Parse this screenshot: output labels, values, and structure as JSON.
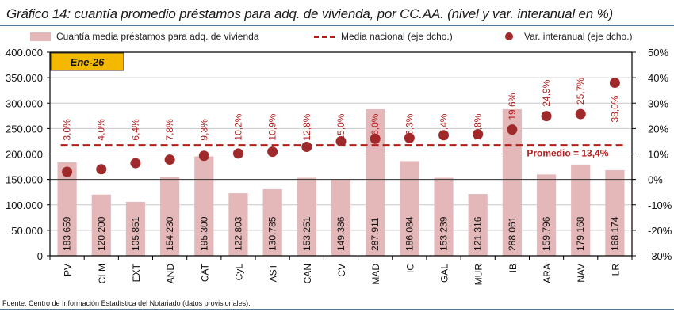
{
  "title": "Gráfico 14: cuantía promedio préstamos para adq. de vivienda, por CC.AA. (nivel y var. interanual en %)",
  "source": "Fuente: Centro de Información Estadística del Notariado (datos provisionales).",
  "colors": {
    "bar": "#e4b8b9",
    "dot": "#9e2a2b",
    "mean_line": "#b01e1e",
    "label": "#b01e1e",
    "badge_bg": "#f5b800",
    "rule": "#4f7ba3"
  },
  "chart_data": {
    "type": "bar",
    "title": "Gráfico 14: cuantía promedio préstamos para adq. de vivienda, por CC.AA. (nivel y var. interanual en %)",
    "badge": "Ene-26",
    "categories": [
      "PV",
      "CLM",
      "EXT",
      "AND",
      "CAT",
      "CyL",
      "AST",
      "CAN",
      "CV",
      "MAD",
      "IC",
      "GAL",
      "MUR",
      "IB",
      "ARA",
      "NAV",
      "LR"
    ],
    "series": [
      {
        "name": "Cuantía media préstamos para adq. de vivienda",
        "type": "bar",
        "axis": "left",
        "values": [
          183659,
          120200,
          105851,
          154230,
          195300,
          122803,
          130785,
          153251,
          149386,
          287911,
          186084,
          153239,
          121316,
          288061,
          159796,
          179168,
          168174
        ],
        "labels": [
          "183.659",
          "120.200",
          "105.851",
          "154.230",
          "195.300",
          "122.803",
          "130.785",
          "153.251",
          "149.386",
          "287.911",
          "186.084",
          "153.239",
          "121.316",
          "288.061",
          "159.796",
          "179.168",
          "168.174"
        ]
      },
      {
        "name": "Var. interanual (eje dcho.)",
        "type": "scatter",
        "axis": "right",
        "values": [
          3.0,
          4.0,
          6.4,
          7.8,
          9.3,
          10.2,
          10.9,
          12.8,
          15.0,
          16.0,
          16.3,
          17.4,
          17.8,
          19.6,
          24.9,
          25.7,
          38.0
        ],
        "labels": [
          "3,0%",
          "4,0%",
          "6,4%",
          "7,8%",
          "9,3%",
          "10,2%",
          "10,9%",
          "12,8%",
          "15,0%",
          "16,0%",
          "16,3%",
          "17,4%",
          "17,8%",
          "19,6%",
          "24,9%",
          "25,7%",
          "38,0%"
        ]
      },
      {
        "name": "Media nacional (eje dcho.)",
        "type": "line",
        "axis": "right",
        "value": 13.4,
        "label": "Promedio = 13,4%"
      }
    ],
    "legend": [
      "Cuantía media préstamos para adq. de vivienda",
      "Media nacional (eje dcho.)",
      "Var. interanual (eje dcho.)"
    ],
    "legend_position": "top",
    "y_left": {
      "ylim": [
        0,
        400000
      ],
      "ticks": [
        0,
        50000,
        100000,
        150000,
        200000,
        250000,
        300000,
        350000,
        400000
      ],
      "tick_labels": [
        "0",
        "50.000",
        "100.000",
        "150.000",
        "200.000",
        "250.000",
        "300.000",
        "350.000",
        "400.000"
      ]
    },
    "y_right": {
      "ylim": [
        -30,
        50
      ],
      "ticks": [
        -30,
        -20,
        -10,
        0,
        10,
        20,
        30,
        40,
        50
      ],
      "tick_labels": [
        "-30%",
        "-20%",
        "-10%",
        "0%",
        "10%",
        "20%",
        "30%",
        "40%",
        "50%"
      ]
    },
    "xlabel": "",
    "ylabel": "",
    "grid": true
  }
}
